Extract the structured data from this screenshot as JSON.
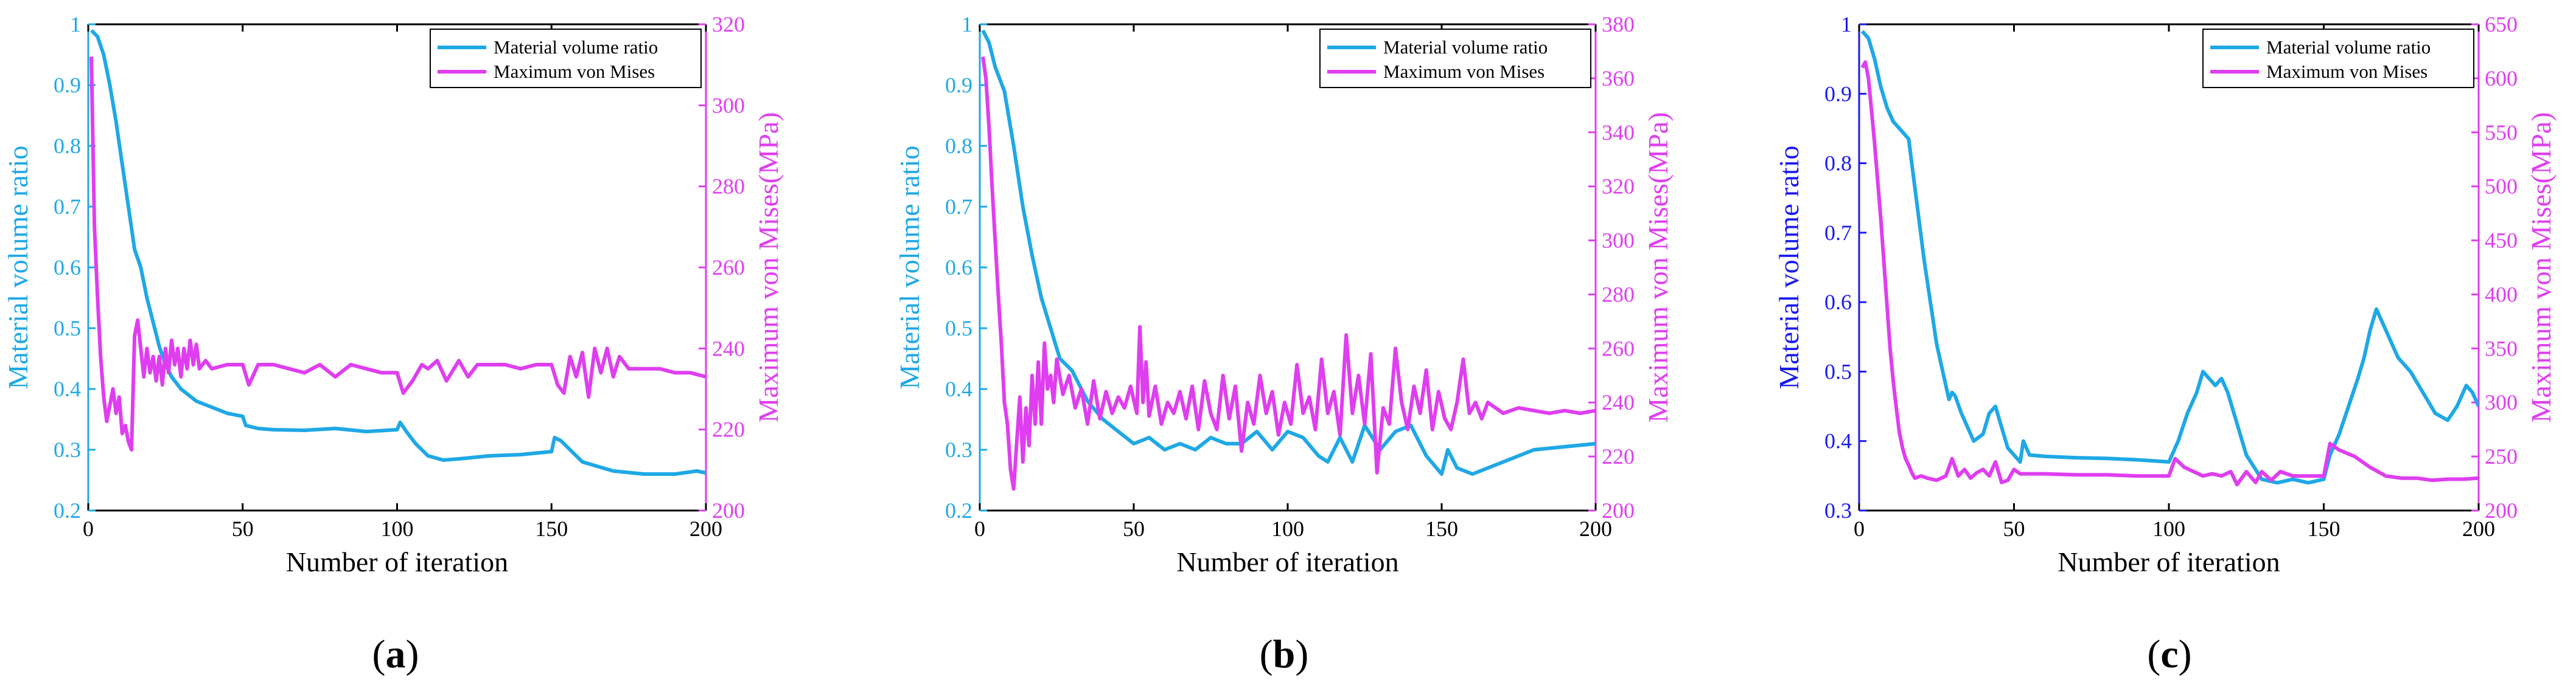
{
  "colors": {
    "volume_a": "#1fa8e6",
    "volume_b": "#1fa8e6",
    "volume_c": "#1a1af0",
    "volume_line": "#1fa8e6",
    "mises": "#df3ef0",
    "axis": "#000000"
  },
  "chart_data": [
    {
      "type": "line",
      "panel_caption": {
        "open": "(",
        "letter": "a",
        "close": ")"
      },
      "xlabel": "Number of iteration",
      "ylabel": "Material volume ratio",
      "y2label": "Maximum von Mises(MPa)",
      "xlim": [
        0,
        200
      ],
      "ylim": [
        0.2,
        1
      ],
      "y2lim": [
        200,
        320
      ],
      "xticks": [
        "0",
        "50",
        "100",
        "150",
        "200"
      ],
      "yticks": [
        "0.2",
        "0.3",
        "0.4",
        "0.5",
        "0.6",
        "0.7",
        "0.8",
        "0.9",
        "1"
      ],
      "y2ticks": [
        "200",
        "220",
        "240",
        "260",
        "280",
        "300",
        "320"
      ],
      "legend": [
        "Material volume ratio",
        "Maximum von Mises"
      ],
      "series": [
        {
          "name": "Material volume ratio",
          "axis": "left",
          "x": [
            1,
            3,
            5,
            7,
            9,
            11,
            13,
            15,
            17,
            19,
            21,
            23,
            25,
            27,
            30,
            35,
            40,
            45,
            50,
            51,
            55,
            60,
            70,
            80,
            90,
            100,
            101,
            103,
            106,
            110,
            115,
            120,
            130,
            140,
            150,
            151,
            153,
            156,
            160,
            170,
            180,
            190,
            197,
            200
          ],
          "values": [
            0.99,
            0.98,
            0.95,
            0.9,
            0.84,
            0.77,
            0.7,
            0.63,
            0.6,
            0.55,
            0.51,
            0.47,
            0.44,
            0.42,
            0.4,
            0.38,
            0.37,
            0.36,
            0.355,
            0.34,
            0.335,
            0.333,
            0.332,
            0.335,
            0.33,
            0.333,
            0.345,
            0.33,
            0.31,
            0.29,
            0.283,
            0.285,
            0.29,
            0.292,
            0.297,
            0.32,
            0.315,
            0.3,
            0.28,
            0.265,
            0.26,
            0.26,
            0.265,
            0.262
          ]
        },
        {
          "name": "Maximum von Mises",
          "axis": "right",
          "x": [
            1,
            2,
            3,
            4,
            5,
            6,
            7,
            8,
            9,
            10,
            11,
            12,
            13,
            14,
            15,
            16,
            17,
            18,
            19,
            20,
            21,
            22,
            23,
            24,
            25,
            26,
            27,
            28,
            29,
            30,
            31,
            32,
            33,
            34,
            35,
            36,
            38,
            40,
            45,
            50,
            52,
            55,
            60,
            65,
            70,
            75,
            80,
            85,
            90,
            95,
            100,
            102,
            105,
            108,
            110,
            113,
            116,
            120,
            123,
            126,
            130,
            135,
            140,
            145,
            150,
            152,
            154,
            156,
            158,
            160,
            162,
            164,
            166,
            168,
            170,
            172,
            175,
            180,
            185,
            190,
            195,
            200
          ],
          "values": [
            312,
            270,
            253,
            238,
            228,
            222,
            226,
            230,
            224,
            228,
            219,
            221,
            217,
            215,
            243,
            247,
            240,
            233,
            240,
            234,
            238,
            232,
            238,
            231,
            240,
            234,
            242,
            236,
            240,
            233,
            240,
            235,
            242,
            236,
            241,
            235,
            237,
            235,
            236,
            236,
            231,
            236,
            236,
            235,
            234,
            236,
            233,
            236,
            235,
            234,
            234,
            229,
            232,
            236,
            235,
            237,
            232,
            237,
            233,
            236,
            236,
            236,
            235,
            236,
            236,
            231,
            229,
            238,
            233,
            239,
            228,
            240,
            234,
            240,
            233,
            238,
            235,
            235,
            235,
            234,
            234,
            233
          ]
        }
      ]
    },
    {
      "type": "line",
      "panel_caption": {
        "open": "(",
        "letter": "b",
        "close": ")"
      },
      "xlabel": "Number of iteration",
      "ylabel": "Material volume ratio",
      "y2label": "Maximum von Mises(MPa)",
      "xlim": [
        0,
        200
      ],
      "ylim": [
        0.2,
        1
      ],
      "y2lim": [
        200,
        380
      ],
      "xticks": [
        "0",
        "50",
        "100",
        "150",
        "200"
      ],
      "yticks": [
        "0.2",
        "0.3",
        "0.4",
        "0.5",
        "0.6",
        "0.7",
        "0.8",
        "0.9",
        "1"
      ],
      "y2ticks": [
        "200",
        "220",
        "240",
        "260",
        "280",
        "300",
        "320",
        "340",
        "360",
        "380"
      ],
      "legend": [
        "Material volume ratio",
        "Maximum von Mises"
      ],
      "series": [
        {
          "name": "Material volume ratio",
          "axis": "left",
          "x": [
            1,
            3,
            5,
            8,
            11,
            14,
            17,
            20,
            23,
            26,
            30,
            35,
            40,
            45,
            50,
            55,
            60,
            65,
            70,
            75,
            80,
            85,
            90,
            95,
            100,
            105,
            110,
            113,
            117,
            121,
            125,
            130,
            135,
            140,
            145,
            150,
            152,
            155,
            160,
            165,
            170,
            180,
            190,
            200
          ],
          "values": [
            0.99,
            0.97,
            0.93,
            0.89,
            0.8,
            0.7,
            0.62,
            0.55,
            0.5,
            0.45,
            0.43,
            0.38,
            0.35,
            0.33,
            0.31,
            0.32,
            0.3,
            0.31,
            0.3,
            0.32,
            0.31,
            0.31,
            0.33,
            0.3,
            0.33,
            0.32,
            0.29,
            0.28,
            0.32,
            0.28,
            0.34,
            0.3,
            0.33,
            0.34,
            0.29,
            0.26,
            0.3,
            0.27,
            0.26,
            0.27,
            0.28,
            0.3,
            0.305,
            0.31
          ]
        },
        {
          "name": "Maximum von Mises",
          "axis": "right",
          "x": [
            1,
            2,
            3,
            4,
            5,
            6,
            7,
            8,
            9,
            10,
            11,
            12,
            13,
            14,
            15,
            16,
            17,
            18,
            19,
            20,
            21,
            22,
            23,
            24,
            25,
            27,
            29,
            31,
            33,
            35,
            37,
            39,
            41,
            43,
            45,
            47,
            49,
            51,
            52,
            53,
            54,
            55,
            57,
            59,
            61,
            63,
            65,
            67,
            69,
            71,
            73,
            75,
            77,
            79,
            81,
            83,
            85,
            87,
            89,
            91,
            93,
            95,
            97,
            99,
            101,
            103,
            105,
            107,
            109,
            111,
            113,
            115,
            117,
            119,
            121,
            123,
            125,
            127,
            129,
            131,
            133,
            135,
            137,
            139,
            141,
            143,
            145,
            147,
            149,
            151,
            153,
            155,
            157,
            159,
            161,
            163,
            165,
            170,
            175,
            180,
            185,
            190,
            195,
            200
          ],
          "values": [
            368,
            360,
            342,
            320,
            300,
            280,
            262,
            240,
            232,
            215,
            208,
            225,
            242,
            218,
            238,
            224,
            250,
            232,
            255,
            232,
            262,
            245,
            250,
            240,
            256,
            243,
            250,
            238,
            245,
            232,
            248,
            234,
            244,
            236,
            242,
            238,
            246,
            236,
            268,
            240,
            255,
            235,
            246,
            232,
            240,
            236,
            244,
            234,
            246,
            230,
            248,
            236,
            230,
            250,
            234,
            246,
            222,
            240,
            232,
            250,
            236,
            244,
            228,
            240,
            232,
            254,
            236,
            242,
            230,
            256,
            236,
            244,
            228,
            265,
            236,
            250,
            232,
            258,
            214,
            238,
            232,
            260,
            240,
            230,
            246,
            236,
            252,
            230,
            244,
            234,
            230,
            240,
            256,
            236,
            240,
            234,
            240,
            236,
            238,
            237,
            236,
            237,
            236,
            237
          ]
        }
      ]
    },
    {
      "type": "line",
      "panel_caption": {
        "open": "(",
        "letter": "c",
        "close": ")"
      },
      "xlabel": "Number of iteration",
      "ylabel": "Material volume ratio",
      "y2label": "Maximum von Mises(MPa)",
      "xlim": [
        0,
        200
      ],
      "ylim": [
        0.3,
        1
      ],
      "y2lim": [
        200,
        650
      ],
      "xticks": [
        "0",
        "50",
        "100",
        "150",
        "200"
      ],
      "yticks": [
        "0.3",
        "0.4",
        "0.5",
        "0.6",
        "0.7",
        "0.8",
        "0.9",
        "1"
      ],
      "y2ticks": [
        "200",
        "250",
        "300",
        "350",
        "400",
        "450",
        "500",
        "550",
        "600",
        "650"
      ],
      "legend": [
        "Material volume ratio",
        "Maximum von Mises"
      ],
      "series": [
        {
          "name": "Material volume ratio",
          "axis": "left",
          "x": [
            1,
            3,
            5,
            7,
            9,
            11,
            13,
            15,
            16,
            17,
            19,
            21,
            23,
            25,
            27,
            29,
            30,
            31,
            33,
            35,
            37,
            40,
            42,
            44,
            46,
            48,
            50,
            52,
            53,
            55,
            60,
            70,
            80,
            90,
            100,
            103,
            106,
            109,
            111,
            113,
            115,
            117,
            119,
            121,
            123,
            125,
            130,
            135,
            140,
            145,
            150,
            152,
            155,
            158,
            161,
            163,
            165,
            167,
            169,
            171,
            174,
            178,
            182,
            186,
            190,
            193,
            196,
            198,
            200
          ],
          "values": [
            0.99,
            0.98,
            0.95,
            0.91,
            0.88,
            0.86,
            0.85,
            0.84,
            0.835,
            0.8,
            0.73,
            0.66,
            0.6,
            0.54,
            0.5,
            0.46,
            0.47,
            0.465,
            0.44,
            0.42,
            0.4,
            0.41,
            0.44,
            0.45,
            0.42,
            0.39,
            0.38,
            0.37,
            0.4,
            0.38,
            0.378,
            0.376,
            0.375,
            0.373,
            0.37,
            0.4,
            0.44,
            0.47,
            0.5,
            0.49,
            0.48,
            0.49,
            0.47,
            0.44,
            0.41,
            0.38,
            0.345,
            0.34,
            0.345,
            0.34,
            0.345,
            0.38,
            0.41,
            0.45,
            0.49,
            0.52,
            0.56,
            0.59,
            0.57,
            0.55,
            0.52,
            0.5,
            0.47,
            0.44,
            0.43,
            0.45,
            0.48,
            0.47,
            0.45
          ]
        },
        {
          "name": "Maximum von Mises",
          "axis": "right",
          "x": [
            1,
            2,
            3,
            4,
            5,
            6,
            7,
            8,
            9,
            10,
            11,
            12,
            13,
            14,
            15,
            16,
            17,
            18,
            20,
            22,
            25,
            28,
            30,
            32,
            34,
            36,
            38,
            40,
            42,
            44,
            46,
            48,
            50,
            52,
            55,
            60,
            70,
            80,
            90,
            100,
            102,
            105,
            108,
            111,
            114,
            117,
            120,
            122,
            125,
            128,
            130,
            133,
            136,
            140,
            145,
            150,
            152,
            155,
            160,
            165,
            170,
            175,
            180,
            185,
            190,
            195,
            200
          ],
          "values": [
            610,
            615,
            600,
            570,
            540,
            505,
            470,
            430,
            390,
            350,
            320,
            295,
            272,
            258,
            248,
            242,
            235,
            230,
            232,
            230,
            228,
            232,
            248,
            232,
            238,
            230,
            235,
            238,
            232,
            245,
            226,
            228,
            238,
            234,
            234,
            234,
            233,
            233,
            232,
            232,
            248,
            240,
            236,
            232,
            234,
            232,
            236,
            224,
            236,
            226,
            236,
            228,
            236,
            232,
            232,
            232,
            262,
            256,
            250,
            240,
            232,
            230,
            230,
            228,
            229,
            229,
            230
          ]
        }
      ]
    }
  ]
}
